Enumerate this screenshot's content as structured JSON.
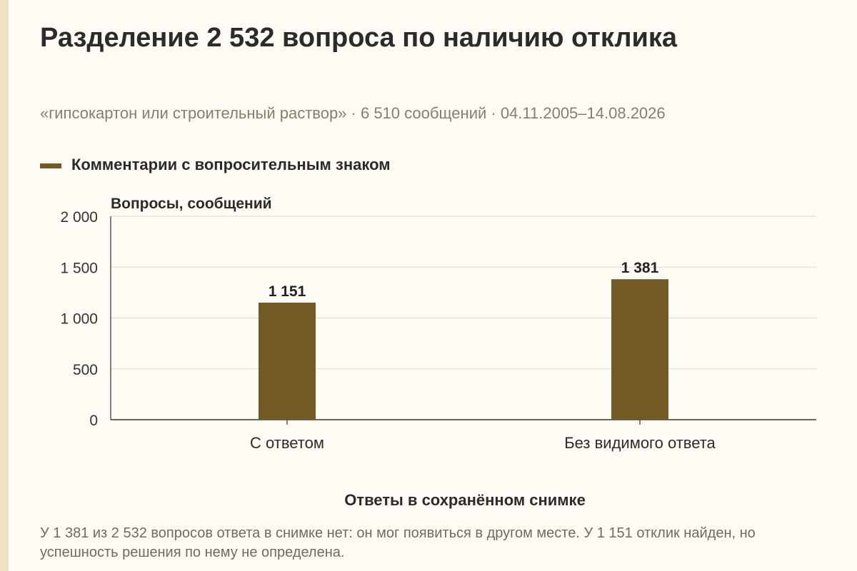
{
  "title": "Разделение 2 532 вопроса по наличию отклика",
  "subtitle": "«гипсокартон или строительный раствор» · 6 510 сообщений · 04.11.2005–14.08.2026",
  "caption": "У 1 381 из 2 532 вопросов ответа в снимке нет: он мог появиться в другом месте. У 1 151 отклик найден, но успешность решения по нему не определена.",
  "colors": {
    "background": "#fdfbf3",
    "bar": "#725a27",
    "grid": "#dedad0",
    "axis": "#333333"
  },
  "chart_data": {
    "type": "bar",
    "xlabel": "Ответы в сохранённом снимке",
    "ylabel": "Вопросы, сообщений",
    "ylim": [
      0,
      2000
    ],
    "yticks": [
      0,
      500,
      1000,
      1500,
      2000
    ],
    "ytick_labels": [
      "0",
      "500",
      "1 000",
      "1 500",
      "2 000"
    ],
    "grid": true,
    "legend_placement": "top-left",
    "categories": [
      "С ответом",
      "Без видимого ответа"
    ],
    "series": [
      {
        "name": "Комментарии с вопросительным знаком",
        "values": [
          1151,
          1381
        ],
        "value_labels": [
          "1 151",
          "1 381"
        ]
      }
    ]
  }
}
